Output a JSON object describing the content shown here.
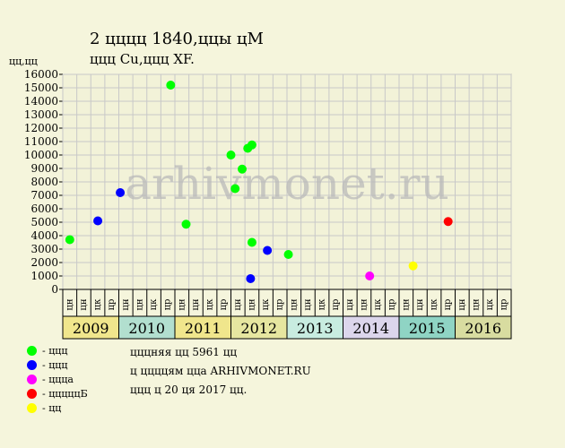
{
  "title_line1": "2  цццц 1840,ццы цМ",
  "title_line2": "ццц Cu,ццц XF.",
  "y_unit_label": "цц,цц",
  "watermark": "arhivmonet.ru",
  "footer": {
    "line1": "цццняя цц 5961 цц",
    "line2": "ц ццццям цца ARHIVMONET.RU",
    "line3": "ццц ц 20 ця 2017 цц."
  },
  "legend": [
    {
      "label": "- ццц",
      "color": "#00ff00"
    },
    {
      "label": "- ццц",
      "color": "#0000ff"
    },
    {
      "label": "- цццa",
      "color": "#ff00ff"
    },
    {
      "label": "- цццццБ",
      "color": "#ff0000"
    },
    {
      "label": "- цц",
      "color": "#ffff00"
    }
  ],
  "chart_data": {
    "type": "scatter",
    "ylim": [
      0,
      16000
    ],
    "yticks": [
      0,
      1000,
      2000,
      3000,
      4000,
      5000,
      6000,
      7000,
      8000,
      9000,
      10000,
      11000,
      12000,
      13000,
      14000,
      15000,
      16000
    ],
    "grid": true,
    "years": [
      {
        "label": "2009",
        "color": "#f0e68c"
      },
      {
        "label": "2010",
        "color": "#b2dfcf"
      },
      {
        "label": "2011",
        "color": "#f0e68c"
      },
      {
        "label": "2012",
        "color": "#e6e6a0"
      },
      {
        "label": "2013",
        "color": "#c8ece0"
      },
      {
        "label": "2014",
        "color": "#dcd6ec"
      },
      {
        "label": "2015",
        "color": "#8fd4c4"
      },
      {
        "label": "2016",
        "color": "#d8dca0"
      }
    ],
    "months": [
      "цн",
      "цн",
      "цк",
      "цр",
      "цн",
      "цн",
      "цк",
      "цр",
      "цн",
      "цн",
      "цк",
      "цр",
      "цн",
      "цн",
      "цк",
      "цр",
      "цн",
      "цн",
      "цк",
      "цр",
      "цн",
      "цн",
      "цк",
      "цр",
      "цн",
      "цн",
      "цк",
      "цр",
      "цн",
      "цн",
      "цк",
      "цр"
    ],
    "points": [
      {
        "x": 0.5,
        "y": 3700,
        "color": "#00ff00"
      },
      {
        "x": 2.5,
        "y": 5100,
        "color": "#0000ff"
      },
      {
        "x": 4.1,
        "y": 7200,
        "color": "#0000ff"
      },
      {
        "x": 7.7,
        "y": 15200,
        "color": "#00ff00"
      },
      {
        "x": 8.8,
        "y": 4850,
        "color": "#00ff00"
      },
      {
        "x": 12.0,
        "y": 10000,
        "color": "#00ff00"
      },
      {
        "x": 12.3,
        "y": 7500,
        "color": "#00ff00"
      },
      {
        "x": 12.8,
        "y": 8950,
        "color": "#00ff00"
      },
      {
        "x": 13.2,
        "y": 10500,
        "color": "#00ff00"
      },
      {
        "x": 13.5,
        "y": 10750,
        "color": "#00ff00"
      },
      {
        "x": 13.5,
        "y": 3500,
        "color": "#00ff00"
      },
      {
        "x": 13.4,
        "y": 800,
        "color": "#0000ff"
      },
      {
        "x": 14.6,
        "y": 2900,
        "color": "#0000ff"
      },
      {
        "x": 16.1,
        "y": 2600,
        "color": "#00ff00"
      },
      {
        "x": 21.9,
        "y": 1000,
        "color": "#ff00ff"
      },
      {
        "x": 25.0,
        "y": 1750,
        "color": "#ffff00"
      },
      {
        "x": 27.5,
        "y": 5050,
        "color": "#ff0000"
      }
    ]
  }
}
